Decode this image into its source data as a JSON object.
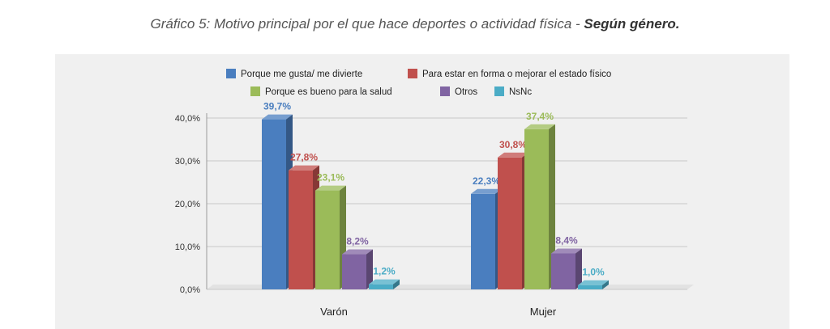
{
  "title": {
    "prefix": "Gráfico 5: Motivo principal por el que hace deportes o actividad física - ",
    "emphasis": "Según género."
  },
  "chart_data": {
    "type": "bar",
    "title": "Gráfico 5: Motivo principal por el que hace deportes o actividad física - Según género.",
    "categories": [
      "Varón",
      "Mujer"
    ],
    "series": [
      {
        "name": "Porque me gusta/ me divierte",
        "values": [
          39.7,
          22.3
        ],
        "labels": [
          "39,7%",
          "22,3%"
        ],
        "color": "#4a7ebf"
      },
      {
        "name": "Para estar en forma o mejorar el estado físico",
        "values": [
          27.8,
          30.8
        ],
        "labels": [
          "27,8%",
          "30,8%"
        ],
        "color": "#c0504d"
      },
      {
        "name": "Porque es bueno para la salud",
        "values": [
          23.1,
          37.4
        ],
        "labels": [
          "23,1%",
          "37,4%"
        ],
        "color": "#9bbb59"
      },
      {
        "name": "Otros",
        "values": [
          8.2,
          8.4
        ],
        "labels": [
          "8,2%",
          "8,4%"
        ],
        "color": "#8064a2"
      },
      {
        "name": "NsNc",
        "values": [
          1.2,
          1.0
        ],
        "labels": [
          "1,2%",
          "1,0%"
        ],
        "color": "#4bacc6"
      }
    ],
    "y_ticks": [
      "0,0%",
      "10,0%",
      "20,0%",
      "30,0%",
      "40,0%"
    ],
    "ylim": [
      0,
      40
    ],
    "grid": true,
    "legend": "top"
  }
}
